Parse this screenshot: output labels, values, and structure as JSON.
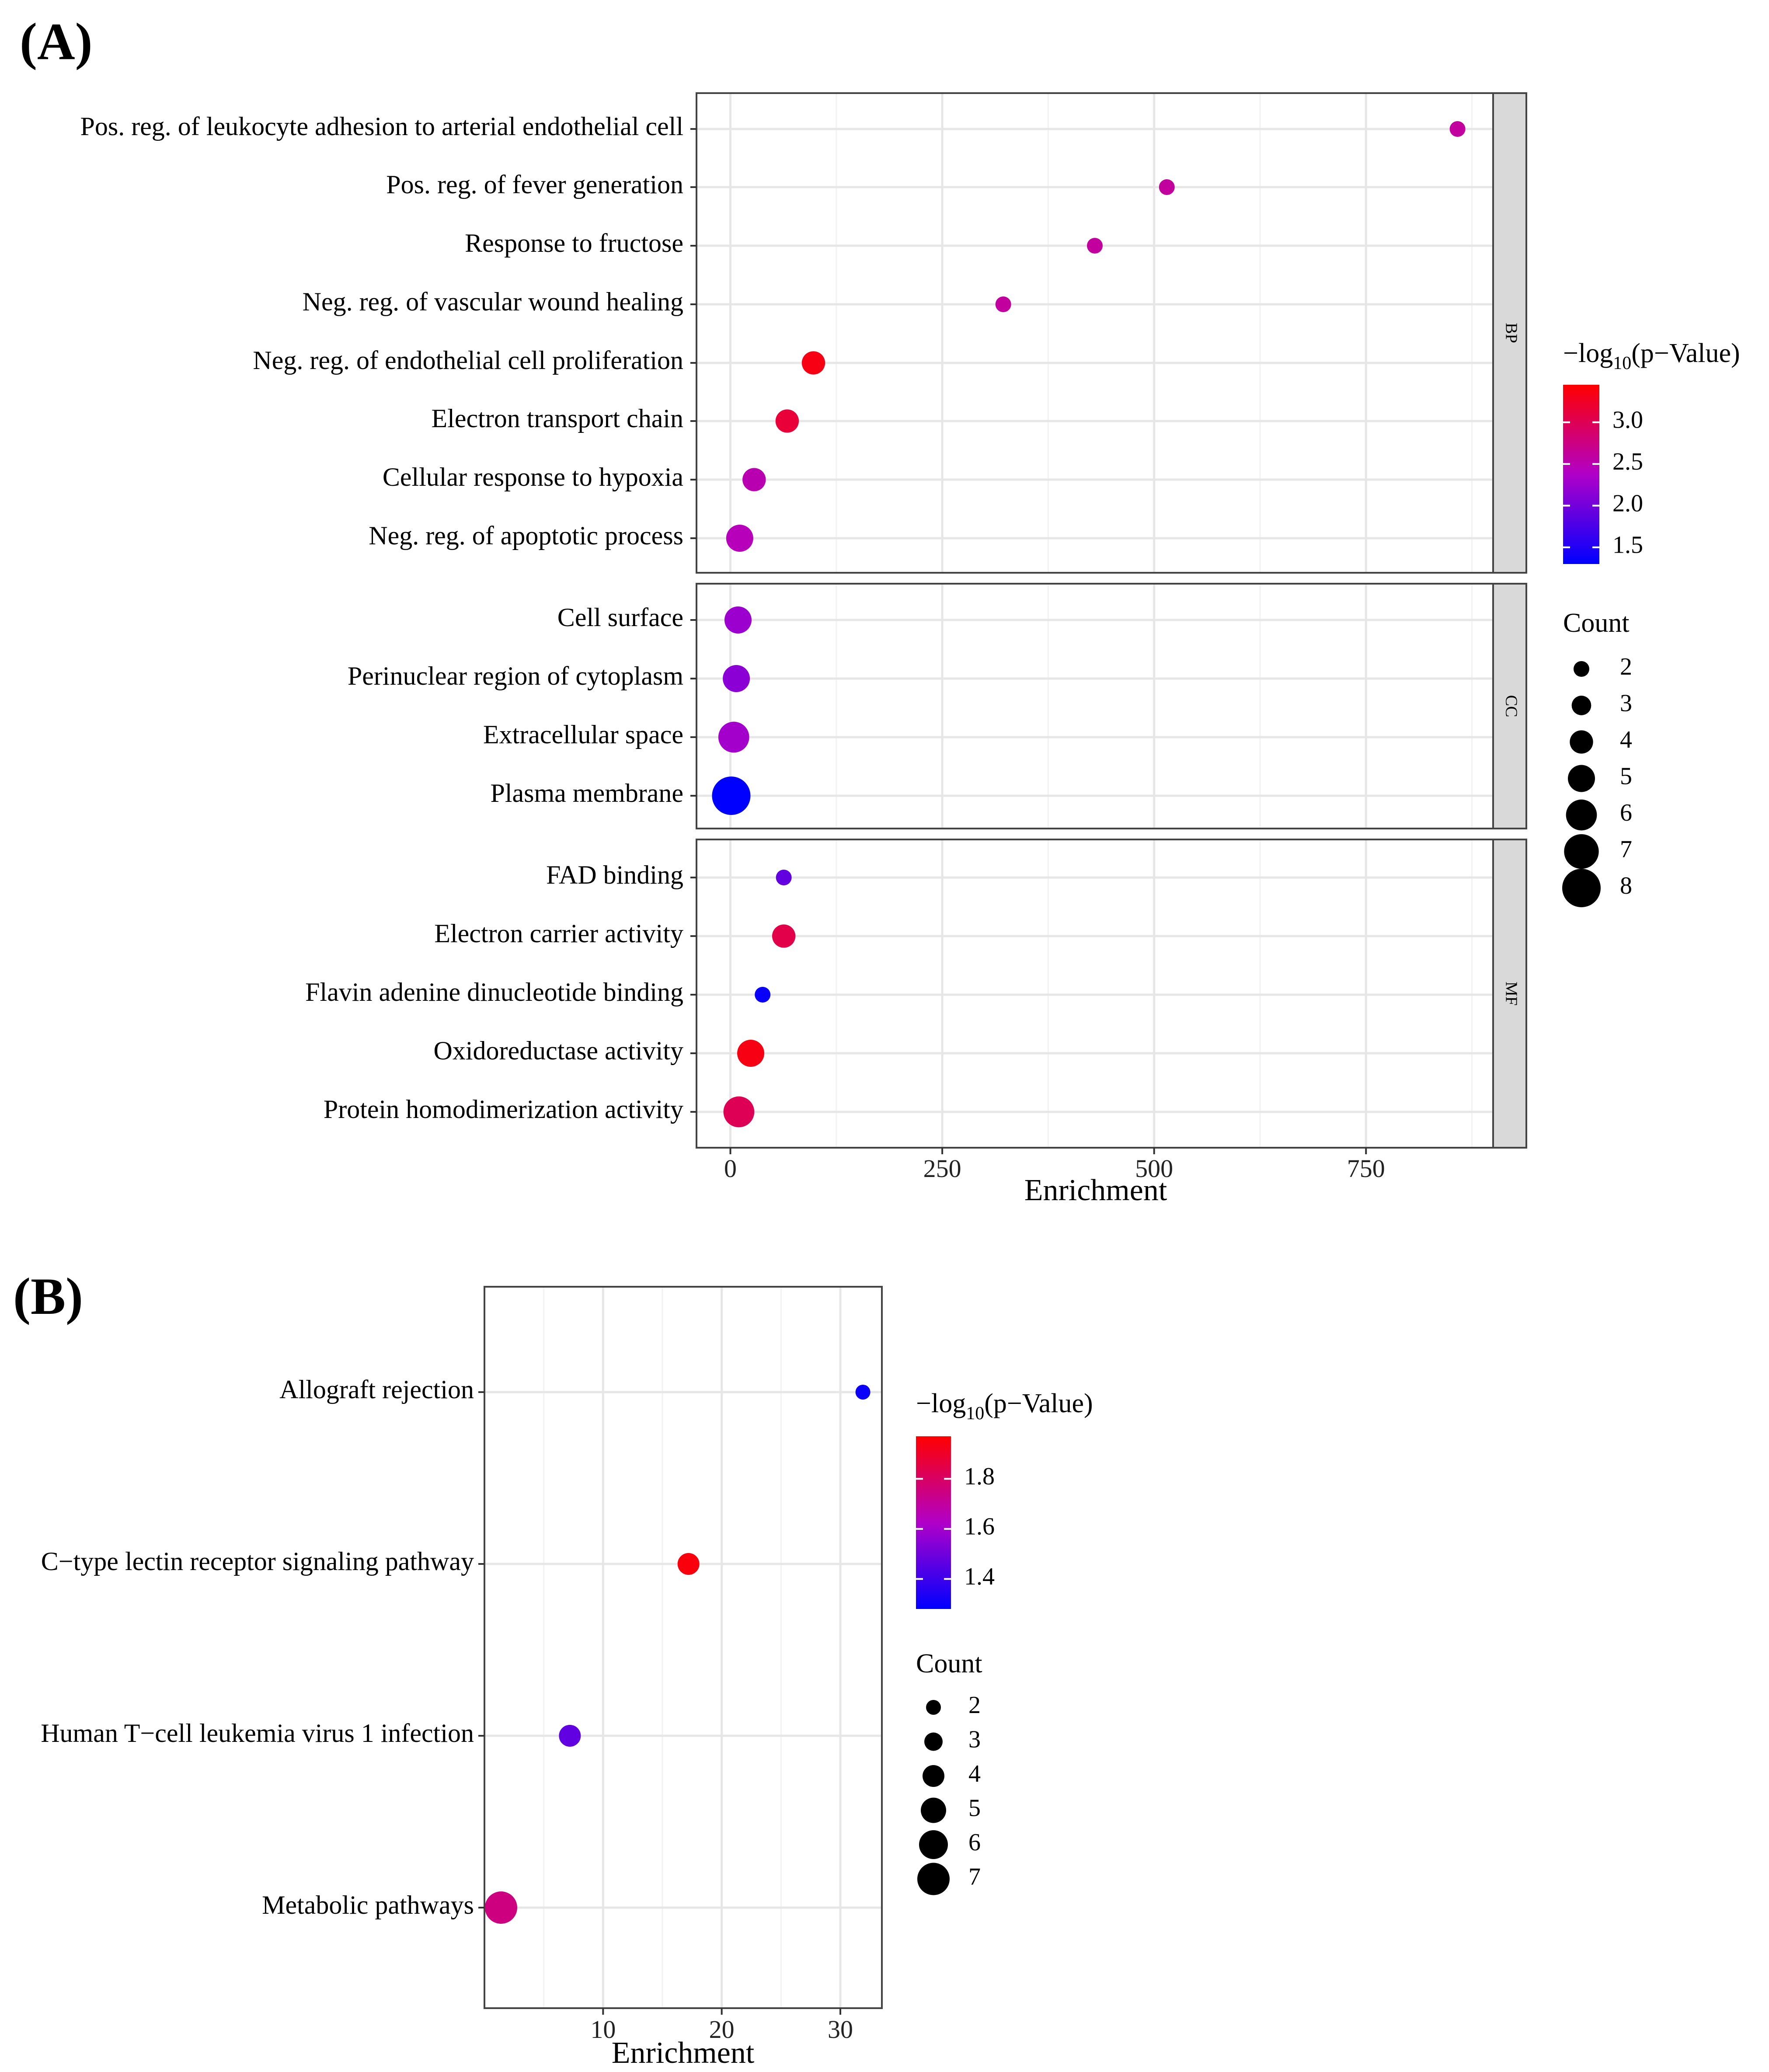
{
  "colors": {
    "low": "#0000ff",
    "mid": "#b000c8",
    "high": "#ff0000"
  },
  "chart_data": [
    {
      "type": "scatter",
      "panel_label": "(A)",
      "xlabel": "Enrichment",
      "xlim": [
        -40,
        900
      ],
      "x_ticks": [
        0,
        250,
        500,
        750
      ],
      "legend_color_title_prefix": "−log",
      "legend_color_title_sub": "10",
      "legend_color_title_suffix": "(p−Value)",
      "color_range": [
        1.3,
        3.45
      ],
      "color_ticks": [
        1.5,
        2.0,
        2.5,
        3.0
      ],
      "color_tick_labels": [
        "1.5",
        "2.0",
        "2.5",
        "3.0"
      ],
      "legend_size_title": "Count",
      "size_ticks": [
        2,
        3,
        4,
        5,
        6,
        7,
        8
      ],
      "size_range": [
        2,
        8
      ],
      "facets": [
        {
          "name": "BP",
          "terms": [
            {
              "label": "Pos. reg. of leukocyte adhesion to arterial endothelial cell",
              "enrichment": 858,
              "count": 2,
              "neglog10p": 2.6
            },
            {
              "label": "Pos. reg. of fever generation",
              "enrichment": 515,
              "count": 2,
              "neglog10p": 2.6
            },
            {
              "label": "Response to fructose",
              "enrichment": 430,
              "count": 2,
              "neglog10p": 2.6
            },
            {
              "label": "Neg. reg. of vascular wound healing",
              "enrichment": 322,
              "count": 2,
              "neglog10p": 2.6
            },
            {
              "label": "Neg. reg. of endothelial cell proliferation",
              "enrichment": 98,
              "count": 4,
              "neglog10p": 3.35
            },
            {
              "label": "Electron transport chain",
              "enrichment": 67,
              "count": 4,
              "neglog10p": 3.15
            },
            {
              "label": "Cellular response to hypoxia",
              "enrichment": 28,
              "count": 4,
              "neglog10p": 2.5
            },
            {
              "label": "Neg. reg. of apoptotic process",
              "enrichment": 11,
              "count": 5,
              "neglog10p": 2.45
            }
          ]
        },
        {
          "name": "CC",
          "terms": [
            {
              "label": "Cell surface",
              "enrichment": 9,
              "count": 5,
              "neglog10p": 2.25
            },
            {
              "label": "Perinuclear region of cytoplasm",
              "enrichment": 7,
              "count": 5,
              "neglog10p": 2.15
            },
            {
              "label": "Extracellular space",
              "enrichment": 4,
              "count": 6,
              "neglog10p": 2.3
            },
            {
              "label": "Plasma membrane",
              "enrichment": 1,
              "count": 8,
              "neglog10p": 1.3
            }
          ]
        },
        {
          "name": "MF",
          "terms": [
            {
              "label": "FAD binding",
              "enrichment": 63,
              "count": 2,
              "neglog10p": 1.9
            },
            {
              "label": "Electron carrier activity",
              "enrichment": 63,
              "count": 4,
              "neglog10p": 3.05
            },
            {
              "label": "Flavin adenine dinucleotide binding",
              "enrichment": 38,
              "count": 2,
              "neglog10p": 1.35
            },
            {
              "label": "Oxidoreductase activity",
              "enrichment": 24,
              "count": 5,
              "neglog10p": 3.35
            },
            {
              "label": "Protein homodimerization activity",
              "enrichment": 10,
              "count": 6,
              "neglog10p": 3.0
            }
          ]
        }
      ]
    },
    {
      "type": "scatter",
      "panel_label": "(B)",
      "xlabel": "Enrichment",
      "xlim": [
        0,
        33.5
      ],
      "x_ticks": [
        10,
        20,
        30
      ],
      "legend_color_title_prefix": "−log",
      "legend_color_title_sub": "10",
      "legend_color_title_suffix": "(p−Value)",
      "color_range": [
        1.28,
        1.97
      ],
      "color_ticks": [
        1.4,
        1.6,
        1.8
      ],
      "color_tick_labels": [
        "1.4",
        "1.6",
        "1.8"
      ],
      "legend_size_title": "Count",
      "size_ticks": [
        2,
        3,
        4,
        5,
        6,
        7
      ],
      "size_range": [
        2,
        7
      ],
      "terms": [
        {
          "label": "Allograft rejection",
          "enrichment": 31.9,
          "count": 2,
          "neglog10p": 1.3
        },
        {
          "label": "C−type lectin receptor signaling pathway",
          "enrichment": 17.2,
          "count": 4,
          "neglog10p": 1.95
        },
        {
          "label": "Human T−cell leukemia virus 1 infection",
          "enrichment": 7.2,
          "count": 4,
          "neglog10p": 1.47
        },
        {
          "label": "Metabolic pathways",
          "enrichment": 1.4,
          "count": 7,
          "neglog10p": 1.75
        }
      ]
    }
  ]
}
